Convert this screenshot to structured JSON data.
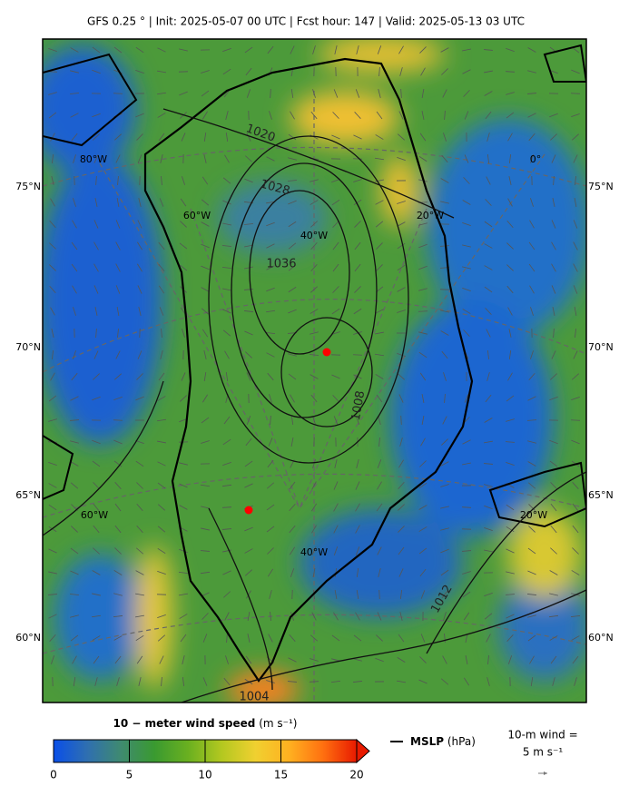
{
  "header": {
    "title": "GFS 0.25 °  |  Init: 2025-05-07 00 UTC  |  Fcst hour: 147  |  Valid: 2025-05-13 03 UTC"
  },
  "map": {
    "lat_labels": [
      "75°N",
      "70°N",
      "65°N",
      "60°N"
    ],
    "lon_labels": [
      "80°W",
      "60°W",
      "40°W",
      "20°W",
      "0°",
      "60°W",
      "40°W",
      "20°W"
    ],
    "contour_labels": [
      "1020",
      "1028",
      "1036",
      "1008",
      "1012",
      "1004"
    ]
  },
  "colorbar": {
    "title": "10 − meter wind speed",
    "units": "(m s⁻¹)",
    "range": [
      0,
      20
    ],
    "ticks": [
      0,
      5,
      10,
      15,
      20
    ],
    "colors": [
      "#0a4fe8",
      "#2f6fb0",
      "#3f8a70",
      "#3a9a30",
      "#6ab020",
      "#b4c820",
      "#f0d030",
      "#ffb020",
      "#ff7010",
      "#e81a00"
    ]
  },
  "legend": {
    "mslp": "MSLP",
    "mslp_units": "(hPa)",
    "wind_line1": "10-m wind =",
    "wind_line2": "5 m s⁻¹"
  }
}
